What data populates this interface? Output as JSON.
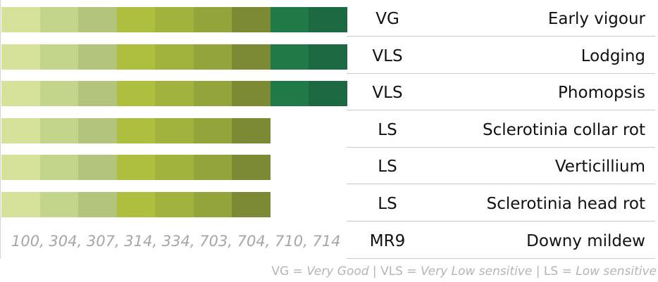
{
  "chart_data": {
    "type": "bar",
    "categories": [
      "Early vigour",
      "Lodging",
      "Phomopsis",
      "Sclerotinia collar rot",
      "Verticillium",
      "Sclerotinia head rot",
      "Downy mildew"
    ],
    "values": [
      9,
      9,
      9,
      7,
      7,
      7,
      null
    ],
    "max_scale": 9,
    "ratings": [
      "VG",
      "VLS",
      "VLS",
      "LS",
      "LS",
      "LS",
      "MR9"
    ],
    "downy_mildew_races": "100, 304, 307, 314, 334, 703, 704, 710, 714",
    "segment_colors": [
      "#d6e29a",
      "#c3d58a",
      "#b3c47c",
      "#aebf3f",
      "#a1b33d",
      "#93a53a",
      "#7c8a33",
      "#1f7a48",
      "#1d6a42"
    ]
  },
  "legend": {
    "items": [
      {
        "code": "VG",
        "eq": " = ",
        "meaning": "Very Good"
      },
      {
        "sep": " | "
      },
      {
        "code": "VLS",
        "eq": " = ",
        "meaning": "Very Low sensitive"
      },
      {
        "sep": " | "
      },
      {
        "code": "LS",
        "eq": " = ",
        "meaning": "Low sensitive"
      }
    ]
  }
}
